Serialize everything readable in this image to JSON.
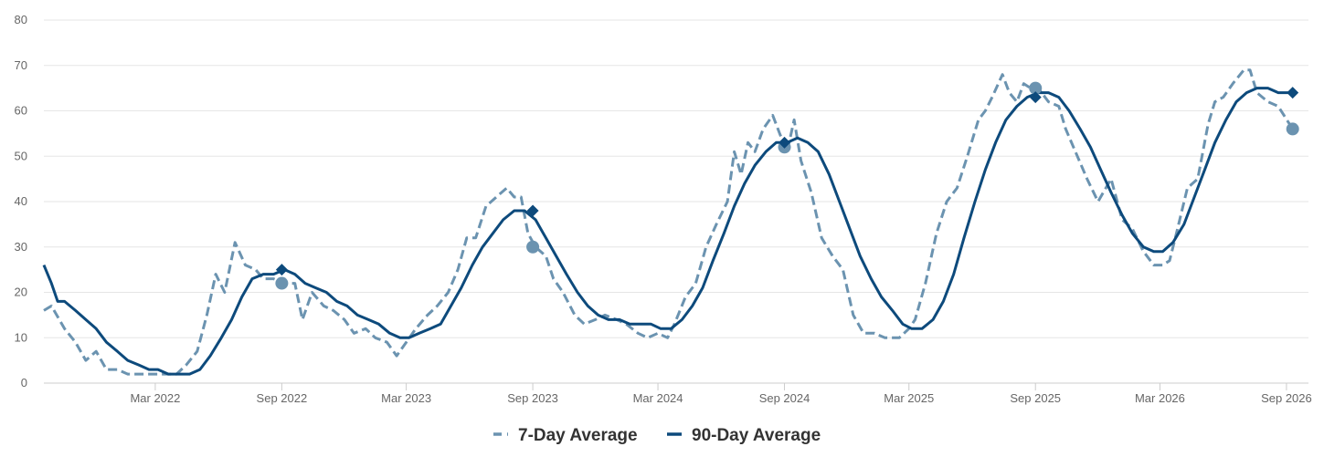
{
  "chart_data": {
    "type": "line",
    "x_axis": {
      "type": "date",
      "range": [
        "2021-09-20",
        "2026-10-03"
      ],
      "tick_labels": [
        {
          "date": "2022-03-01",
          "label": "Mar 2022"
        },
        {
          "date": "2022-09-01",
          "label": "Sep 2022"
        },
        {
          "date": "2023-03-01",
          "label": "Mar 2023"
        },
        {
          "date": "2023-09-01",
          "label": "Sep 2023"
        },
        {
          "date": "2024-03-01",
          "label": "Mar 2024"
        },
        {
          "date": "2024-09-01",
          "label": "Sep 2024"
        },
        {
          "date": "2025-03-01",
          "label": "Mar 2025"
        },
        {
          "date": "2025-09-01",
          "label": "Sep 2025"
        },
        {
          "date": "2026-03-01",
          "label": "Mar 2026"
        },
        {
          "date": "2026-09-01",
          "label": "Sep 2026"
        }
      ]
    },
    "y_axis": {
      "range": [
        0,
        80
      ],
      "ticks": [
        0,
        10,
        20,
        30,
        40,
        50,
        60,
        70,
        80
      ],
      "grid": true
    },
    "legend": {
      "position": "bottom-center"
    },
    "series": [
      {
        "name": "7-Day Average",
        "color": "#6b93b0",
        "style": "dashed",
        "points": [
          [
            "2021-09-20",
            16
          ],
          [
            "2021-10-01",
            17
          ],
          [
            "2021-10-20",
            12
          ],
          [
            "2021-11-05",
            9
          ],
          [
            "2021-11-20",
            5
          ],
          [
            "2021-12-05",
            7
          ],
          [
            "2021-12-20",
            3
          ],
          [
            "2022-01-05",
            3
          ],
          [
            "2022-01-20",
            2
          ],
          [
            "2022-02-05",
            2
          ],
          [
            "2022-02-20",
            2
          ],
          [
            "2022-03-05",
            2
          ],
          [
            "2022-03-20",
            2
          ],
          [
            "2022-04-01",
            2
          ],
          [
            "2022-04-15",
            4
          ],
          [
            "2022-05-01",
            7
          ],
          [
            "2022-05-15",
            15
          ],
          [
            "2022-05-28",
            24
          ],
          [
            "2022-06-10",
            20
          ],
          [
            "2022-06-25",
            31
          ],
          [
            "2022-07-10",
            26
          ],
          [
            "2022-07-25",
            25
          ],
          [
            "2022-08-05",
            23
          ],
          [
            "2022-08-20",
            23
          ],
          [
            "2022-09-05",
            22
          ],
          [
            "2022-09-20",
            22
          ],
          [
            "2022-10-01",
            14
          ],
          [
            "2022-10-15",
            20
          ],
          [
            "2022-11-01",
            17
          ],
          [
            "2022-11-15",
            16
          ],
          [
            "2022-12-01",
            14
          ],
          [
            "2022-12-15",
            11
          ],
          [
            "2023-01-01",
            12
          ],
          [
            "2023-01-15",
            10
          ],
          [
            "2023-02-01",
            9
          ],
          [
            "2023-02-15",
            6
          ],
          [
            "2023-03-01",
            9
          ],
          [
            "2023-03-15",
            12
          ],
          [
            "2023-04-01",
            15
          ],
          [
            "2023-04-15",
            17
          ],
          [
            "2023-05-01",
            20
          ],
          [
            "2023-05-15",
            25
          ],
          [
            "2023-05-28",
            32
          ],
          [
            "2023-06-10",
            32
          ],
          [
            "2023-06-25",
            39
          ],
          [
            "2023-07-10",
            41
          ],
          [
            "2023-07-25",
            43
          ],
          [
            "2023-08-05",
            41
          ],
          [
            "2023-08-15",
            41
          ],
          [
            "2023-08-25",
            33
          ],
          [
            "2023-09-05",
            30
          ],
          [
            "2023-09-20",
            28
          ],
          [
            "2023-10-01",
            23
          ],
          [
            "2023-10-15",
            20
          ],
          [
            "2023-11-01",
            15
          ],
          [
            "2023-11-15",
            13
          ],
          [
            "2023-12-01",
            14
          ],
          [
            "2023-12-15",
            15
          ],
          [
            "2024-01-01",
            14
          ],
          [
            "2024-01-15",
            13
          ],
          [
            "2024-02-01",
            11
          ],
          [
            "2024-02-15",
            10
          ],
          [
            "2024-03-01",
            11
          ],
          [
            "2024-03-15",
            10
          ],
          [
            "2024-03-25",
            13
          ],
          [
            "2024-04-10",
            19
          ],
          [
            "2024-04-25",
            22
          ],
          [
            "2024-05-10",
            30
          ],
          [
            "2024-05-25",
            35
          ],
          [
            "2024-06-10",
            40
          ],
          [
            "2024-06-20",
            51
          ],
          [
            "2024-06-30",
            46
          ],
          [
            "2024-07-10",
            53
          ],
          [
            "2024-07-20",
            51
          ],
          [
            "2024-08-01",
            56
          ],
          [
            "2024-08-15",
            59
          ],
          [
            "2024-08-25",
            55
          ],
          [
            "2024-09-05",
            51
          ],
          [
            "2024-09-15",
            58
          ],
          [
            "2024-09-25",
            49
          ],
          [
            "2024-10-10",
            42
          ],
          [
            "2024-10-25",
            32
          ],
          [
            "2024-11-10",
            28
          ],
          [
            "2024-11-25",
            25
          ],
          [
            "2024-12-10",
            15
          ],
          [
            "2024-12-25",
            11
          ],
          [
            "2025-01-10",
            11
          ],
          [
            "2025-01-25",
            10
          ],
          [
            "2025-02-05",
            10
          ],
          [
            "2025-02-15",
            10
          ],
          [
            "2025-03-01",
            12
          ],
          [
            "2025-03-10",
            14
          ],
          [
            "2025-03-25",
            22
          ],
          [
            "2025-04-10",
            33
          ],
          [
            "2025-04-25",
            40
          ],
          [
            "2025-05-10",
            43
          ],
          [
            "2025-05-25",
            50
          ],
          [
            "2025-06-10",
            58
          ],
          [
            "2025-06-20",
            60
          ],
          [
            "2025-06-30",
            63
          ],
          [
            "2025-07-15",
            68
          ],
          [
            "2025-07-25",
            64
          ],
          [
            "2025-08-05",
            62
          ],
          [
            "2025-08-15",
            66
          ],
          [
            "2025-08-25",
            65
          ],
          [
            "2025-09-05",
            65
          ],
          [
            "2025-09-20",
            62
          ],
          [
            "2025-10-05",
            61
          ],
          [
            "2025-10-15",
            56
          ],
          [
            "2025-11-01",
            50
          ],
          [
            "2025-11-15",
            45
          ],
          [
            "2025-12-01",
            40
          ],
          [
            "2025-12-20",
            45
          ],
          [
            "2026-01-05",
            36
          ],
          [
            "2026-01-20",
            34
          ],
          [
            "2026-02-05",
            29
          ],
          [
            "2026-02-20",
            26
          ],
          [
            "2026-03-05",
            26
          ],
          [
            "2026-03-15",
            27
          ],
          [
            "2026-03-25",
            33
          ],
          [
            "2026-04-10",
            43
          ],
          [
            "2026-04-25",
            45
          ],
          [
            "2026-05-10",
            57
          ],
          [
            "2026-05-20",
            62
          ],
          [
            "2026-06-01",
            63
          ],
          [
            "2026-06-15",
            66
          ],
          [
            "2026-07-01",
            69
          ],
          [
            "2026-07-10",
            69
          ],
          [
            "2026-07-20",
            64
          ],
          [
            "2026-08-05",
            62
          ],
          [
            "2026-08-20",
            61
          ],
          [
            "2026-09-10",
            56
          ]
        ],
        "end_marker": [
          "2026-09-10",
          56
        ]
      },
      {
        "name": "90-Day Average",
        "color": "#0d4a7c",
        "style": "solid",
        "points": [
          [
            "2021-09-20",
            26
          ],
          [
            "2021-10-01",
            22
          ],
          [
            "2021-10-10",
            18
          ],
          [
            "2021-10-20",
            18
          ],
          [
            "2021-11-05",
            16
          ],
          [
            "2021-11-20",
            14
          ],
          [
            "2021-12-05",
            12
          ],
          [
            "2021-12-20",
            9
          ],
          [
            "2022-01-05",
            7
          ],
          [
            "2022-01-20",
            5
          ],
          [
            "2022-02-05",
            4
          ],
          [
            "2022-02-20",
            3
          ],
          [
            "2022-03-05",
            3
          ],
          [
            "2022-03-20",
            2
          ],
          [
            "2022-04-05",
            2
          ],
          [
            "2022-04-20",
            2
          ],
          [
            "2022-05-05",
            3
          ],
          [
            "2022-05-20",
            6
          ],
          [
            "2022-06-05",
            10
          ],
          [
            "2022-06-20",
            14
          ],
          [
            "2022-07-05",
            19
          ],
          [
            "2022-07-20",
            23
          ],
          [
            "2022-08-05",
            24
          ],
          [
            "2022-08-20",
            24
          ],
          [
            "2022-09-05",
            25
          ],
          [
            "2022-09-20",
            24
          ],
          [
            "2022-10-05",
            22
          ],
          [
            "2022-10-20",
            21
          ],
          [
            "2022-11-05",
            20
          ],
          [
            "2022-11-20",
            18
          ],
          [
            "2022-12-05",
            17
          ],
          [
            "2022-12-20",
            15
          ],
          [
            "2023-01-05",
            14
          ],
          [
            "2023-01-20",
            13
          ],
          [
            "2023-02-05",
            11
          ],
          [
            "2023-02-20",
            10
          ],
          [
            "2023-03-05",
            10
          ],
          [
            "2023-03-20",
            11
          ],
          [
            "2023-04-05",
            12
          ],
          [
            "2023-04-20",
            13
          ],
          [
            "2023-05-05",
            17
          ],
          [
            "2023-05-20",
            21
          ],
          [
            "2023-06-05",
            26
          ],
          [
            "2023-06-20",
            30
          ],
          [
            "2023-07-05",
            33
          ],
          [
            "2023-07-20",
            36
          ],
          [
            "2023-08-05",
            38
          ],
          [
            "2023-08-20",
            38
          ],
          [
            "2023-09-05",
            36
          ],
          [
            "2023-09-20",
            32
          ],
          [
            "2023-10-05",
            28
          ],
          [
            "2023-10-20",
            24
          ],
          [
            "2023-11-05",
            20
          ],
          [
            "2023-11-20",
            17
          ],
          [
            "2023-12-05",
            15
          ],
          [
            "2023-12-20",
            14
          ],
          [
            "2024-01-05",
            14
          ],
          [
            "2024-01-20",
            13
          ],
          [
            "2024-02-05",
            13
          ],
          [
            "2024-02-20",
            13
          ],
          [
            "2024-03-05",
            12
          ],
          [
            "2024-03-20",
            12
          ],
          [
            "2024-04-05",
            14
          ],
          [
            "2024-04-20",
            17
          ],
          [
            "2024-05-05",
            21
          ],
          [
            "2024-05-20",
            27
          ],
          [
            "2024-06-05",
            33
          ],
          [
            "2024-06-20",
            39
          ],
          [
            "2024-07-05",
            44
          ],
          [
            "2024-07-20",
            48
          ],
          [
            "2024-08-05",
            51
          ],
          [
            "2024-08-20",
            53
          ],
          [
            "2024-09-05",
            53
          ],
          [
            "2024-09-20",
            54
          ],
          [
            "2024-10-05",
            53
          ],
          [
            "2024-10-20",
            51
          ],
          [
            "2024-11-05",
            46
          ],
          [
            "2024-11-20",
            40
          ],
          [
            "2024-12-05",
            34
          ],
          [
            "2024-12-20",
            28
          ],
          [
            "2025-01-05",
            23
          ],
          [
            "2025-01-20",
            19
          ],
          [
            "2025-02-05",
            16
          ],
          [
            "2025-02-20",
            13
          ],
          [
            "2025-03-05",
            12
          ],
          [
            "2025-03-20",
            12
          ],
          [
            "2025-04-05",
            14
          ],
          [
            "2025-04-20",
            18
          ],
          [
            "2025-05-05",
            24
          ],
          [
            "2025-05-20",
            32
          ],
          [
            "2025-06-05",
            40
          ],
          [
            "2025-06-20",
            47
          ],
          [
            "2025-07-05",
            53
          ],
          [
            "2025-07-20",
            58
          ],
          [
            "2025-08-05",
            61
          ],
          [
            "2025-08-20",
            63
          ],
          [
            "2025-09-05",
            64
          ],
          [
            "2025-09-20",
            64
          ],
          [
            "2025-10-05",
            63
          ],
          [
            "2025-10-20",
            60
          ],
          [
            "2025-11-05",
            56
          ],
          [
            "2025-11-20",
            52
          ],
          [
            "2025-12-05",
            47
          ],
          [
            "2025-12-20",
            42
          ],
          [
            "2026-01-05",
            37
          ],
          [
            "2026-01-20",
            33
          ],
          [
            "2026-02-05",
            30
          ],
          [
            "2026-02-20",
            29
          ],
          [
            "2026-03-05",
            29
          ],
          [
            "2026-03-20",
            31
          ],
          [
            "2026-04-05",
            35
          ],
          [
            "2026-04-20",
            41
          ],
          [
            "2026-05-05",
            47
          ],
          [
            "2026-05-20",
            53
          ],
          [
            "2026-06-05",
            58
          ],
          [
            "2026-06-20",
            62
          ],
          [
            "2026-07-05",
            64
          ],
          [
            "2026-07-20",
            65
          ],
          [
            "2026-08-05",
            65
          ],
          [
            "2026-08-20",
            64
          ],
          [
            "2026-09-05",
            64
          ],
          [
            "2026-09-10",
            64
          ]
        ],
        "end_marker": [
          "2026-09-10",
          64
        ]
      }
    ],
    "annotations": [
      {
        "series": "7-Day Average",
        "marker": "circle",
        "date": "2022-09-01",
        "value": 22
      },
      {
        "series": "90-Day Average",
        "marker": "diamond",
        "date": "2022-09-01",
        "value": 25
      },
      {
        "series": "7-Day Average",
        "marker": "circle",
        "date": "2023-09-01",
        "value": 30
      },
      {
        "series": "90-Day Average",
        "marker": "diamond",
        "date": "2023-09-01",
        "value": 38
      },
      {
        "series": "7-Day Average",
        "marker": "circle",
        "date": "2024-09-01",
        "value": 52
      },
      {
        "series": "90-Day Average",
        "marker": "diamond",
        "date": "2024-09-01",
        "value": 53
      },
      {
        "series": "7-Day Average",
        "marker": "circle",
        "date": "2025-09-01",
        "value": 65
      },
      {
        "series": "90-Day Average",
        "marker": "diamond",
        "date": "2025-09-01",
        "value": 63
      }
    ]
  },
  "legend": {
    "items": [
      {
        "label": "7-Day Average",
        "color": "#6b93b0",
        "style": "dashed"
      },
      {
        "label": "90-Day Average",
        "color": "#0d4a7c",
        "style": "solid"
      }
    ]
  },
  "colors": {
    "grid": "#e6e6e6",
    "axis": "#cccccc",
    "tick_text": "#666666",
    "legend_text": "#333333"
  }
}
